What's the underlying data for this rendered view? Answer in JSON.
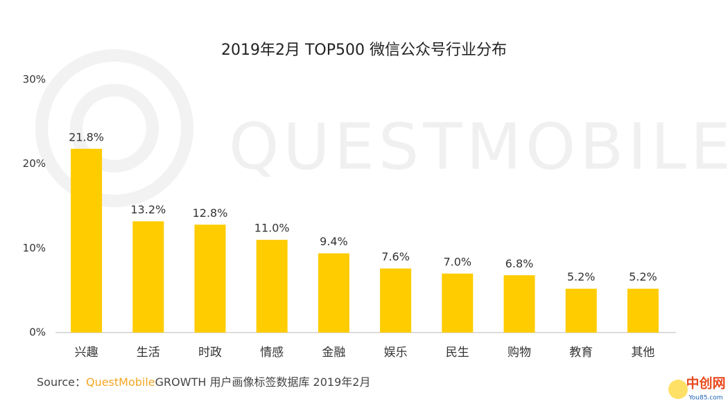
{
  "chart_data": {
    "type": "bar",
    "title": "2019年2月 TOP500 微信公众号行业分布",
    "categories": [
      "兴趣",
      "生活",
      "时政",
      "情感",
      "金融",
      "娱乐",
      "民生",
      "购物",
      "教育",
      "其他"
    ],
    "values": [
      21.8,
      13.2,
      12.8,
      11.0,
      9.4,
      7.6,
      7.0,
      6.8,
      5.2,
      5.2
    ],
    "value_labels": [
      "21.8%",
      "13.2%",
      "12.8%",
      "11.0%",
      "9.4%",
      "7.6%",
      "7.0%",
      "6.8%",
      "5.2%",
      "5.2%"
    ],
    "color": "#ffcc00",
    "ylim": [
      0,
      30
    ],
    "yticks": [
      {
        "value": 0,
        "label": "0%"
      },
      {
        "value": 10,
        "label": "10%"
      },
      {
        "value": 20,
        "label": "20%"
      },
      {
        "value": 30,
        "label": "30%"
      }
    ],
    "grid": false,
    "source": {
      "prefix": "Source：",
      "brand": "QuestMobile",
      "rest": "GROWTH 用户画像标签数据库  2019年2月"
    },
    "watermark": "QUESTMOBILE",
    "logo": {
      "name": "中创网",
      "site": "You85.com"
    }
  }
}
